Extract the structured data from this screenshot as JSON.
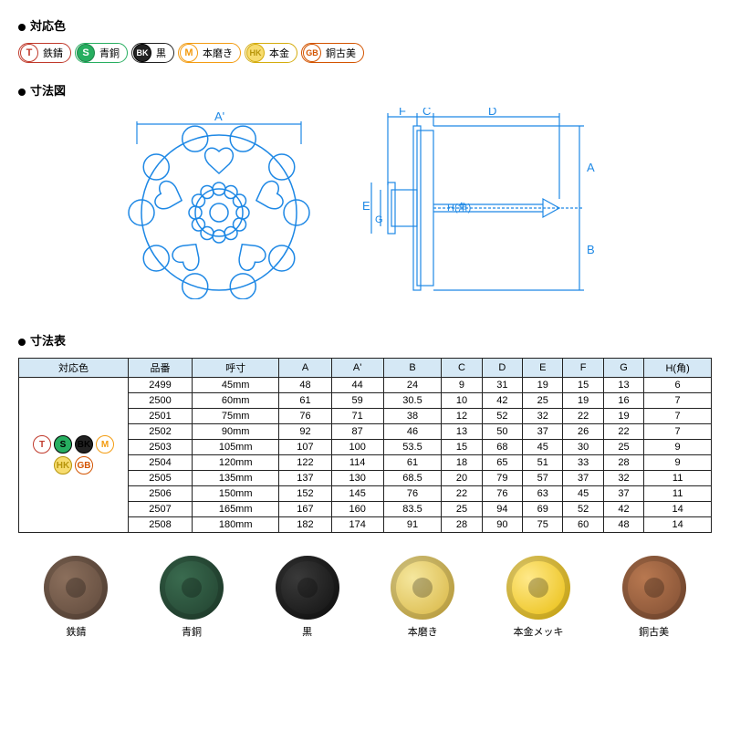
{
  "sections": {
    "colors_title": "対応色",
    "diagram_title": "寸法図",
    "table_title": "寸法表"
  },
  "color_options": [
    {
      "code": "T",
      "label": "鉄錆",
      "circleClass": "c-t",
      "groupClass": "bg-t"
    },
    {
      "code": "S",
      "label": "青銅",
      "circleClass": "c-s",
      "groupClass": "bg-s"
    },
    {
      "code": "BK",
      "label": "黒",
      "circleClass": "c-bk",
      "groupClass": "bg-bk"
    },
    {
      "code": "M",
      "label": "本磨き",
      "circleClass": "c-m",
      "groupClass": "bg-m"
    },
    {
      "code": "HK",
      "label": "本金",
      "circleClass": "c-hk",
      "groupClass": "bg-hk"
    },
    {
      "code": "GB",
      "label": "銅古美",
      "circleClass": "c-gb",
      "groupClass": "bg-gb"
    }
  ],
  "diagram_labels": {
    "A": "A",
    "Aprime": "A'",
    "B": "B",
    "C": "C",
    "D": "D",
    "E": "E",
    "F": "F",
    "G": "G",
    "H": "H(角)"
  },
  "diagram_colors": {
    "line": "#1e88e5",
    "outline": "#1e88e5"
  },
  "table": {
    "headers": [
      "対応色",
      "品番",
      "呼寸",
      "A",
      "A'",
      "B",
      "C",
      "D",
      "E",
      "F",
      "G",
      "H(角)"
    ],
    "rows": [
      [
        "2499",
        "45mm",
        "48",
        "44",
        "24",
        "9",
        "31",
        "19",
        "15",
        "13",
        "6"
      ],
      [
        "2500",
        "60mm",
        "61",
        "59",
        "30.5",
        "10",
        "42",
        "25",
        "19",
        "16",
        "7"
      ],
      [
        "2501",
        "75mm",
        "76",
        "71",
        "38",
        "12",
        "52",
        "32",
        "22",
        "19",
        "7"
      ],
      [
        "2502",
        "90mm",
        "92",
        "87",
        "46",
        "13",
        "50",
        "37",
        "26",
        "22",
        "7"
      ],
      [
        "2503",
        "105mm",
        "107",
        "100",
        "53.5",
        "15",
        "68",
        "45",
        "30",
        "25",
        "9"
      ],
      [
        "2504",
        "120mm",
        "122",
        "114",
        "61",
        "18",
        "65",
        "51",
        "33",
        "28",
        "9"
      ],
      [
        "2505",
        "135mm",
        "137",
        "130",
        "68.5",
        "20",
        "79",
        "57",
        "37",
        "32",
        "11"
      ],
      [
        "2506",
        "150mm",
        "152",
        "145",
        "76",
        "22",
        "76",
        "63",
        "45",
        "37",
        "11"
      ],
      [
        "2507",
        "165mm",
        "167",
        "160",
        "83.5",
        "25",
        "94",
        "69",
        "52",
        "42",
        "14"
      ],
      [
        "2508",
        "180mm",
        "182",
        "174",
        "91",
        "28",
        "90",
        "75",
        "60",
        "48",
        "14"
      ]
    ]
  },
  "finishes": [
    {
      "label": "鉄錆",
      "bg": "radial-gradient(circle at 35% 35%, #8b6f5c, #5a4538)"
    },
    {
      "label": "青銅",
      "bg": "radial-gradient(circle at 35% 35%, #3a6b4f, #1f3d2c)"
    },
    {
      "label": "黒",
      "bg": "radial-gradient(circle at 35% 35%, #3a3a3a, #0d0d0d)"
    },
    {
      "label": "本磨き",
      "bg": "radial-gradient(circle at 35% 35%, #f5e79e, #d4af37)"
    },
    {
      "label": "本金メッキ",
      "bg": "radial-gradient(circle at 35% 35%, #ffe98a, #e6b800)"
    },
    {
      "label": "銅古美",
      "bg": "radial-gradient(circle at 35% 35%, #b87850, #7a4a30)"
    }
  ]
}
